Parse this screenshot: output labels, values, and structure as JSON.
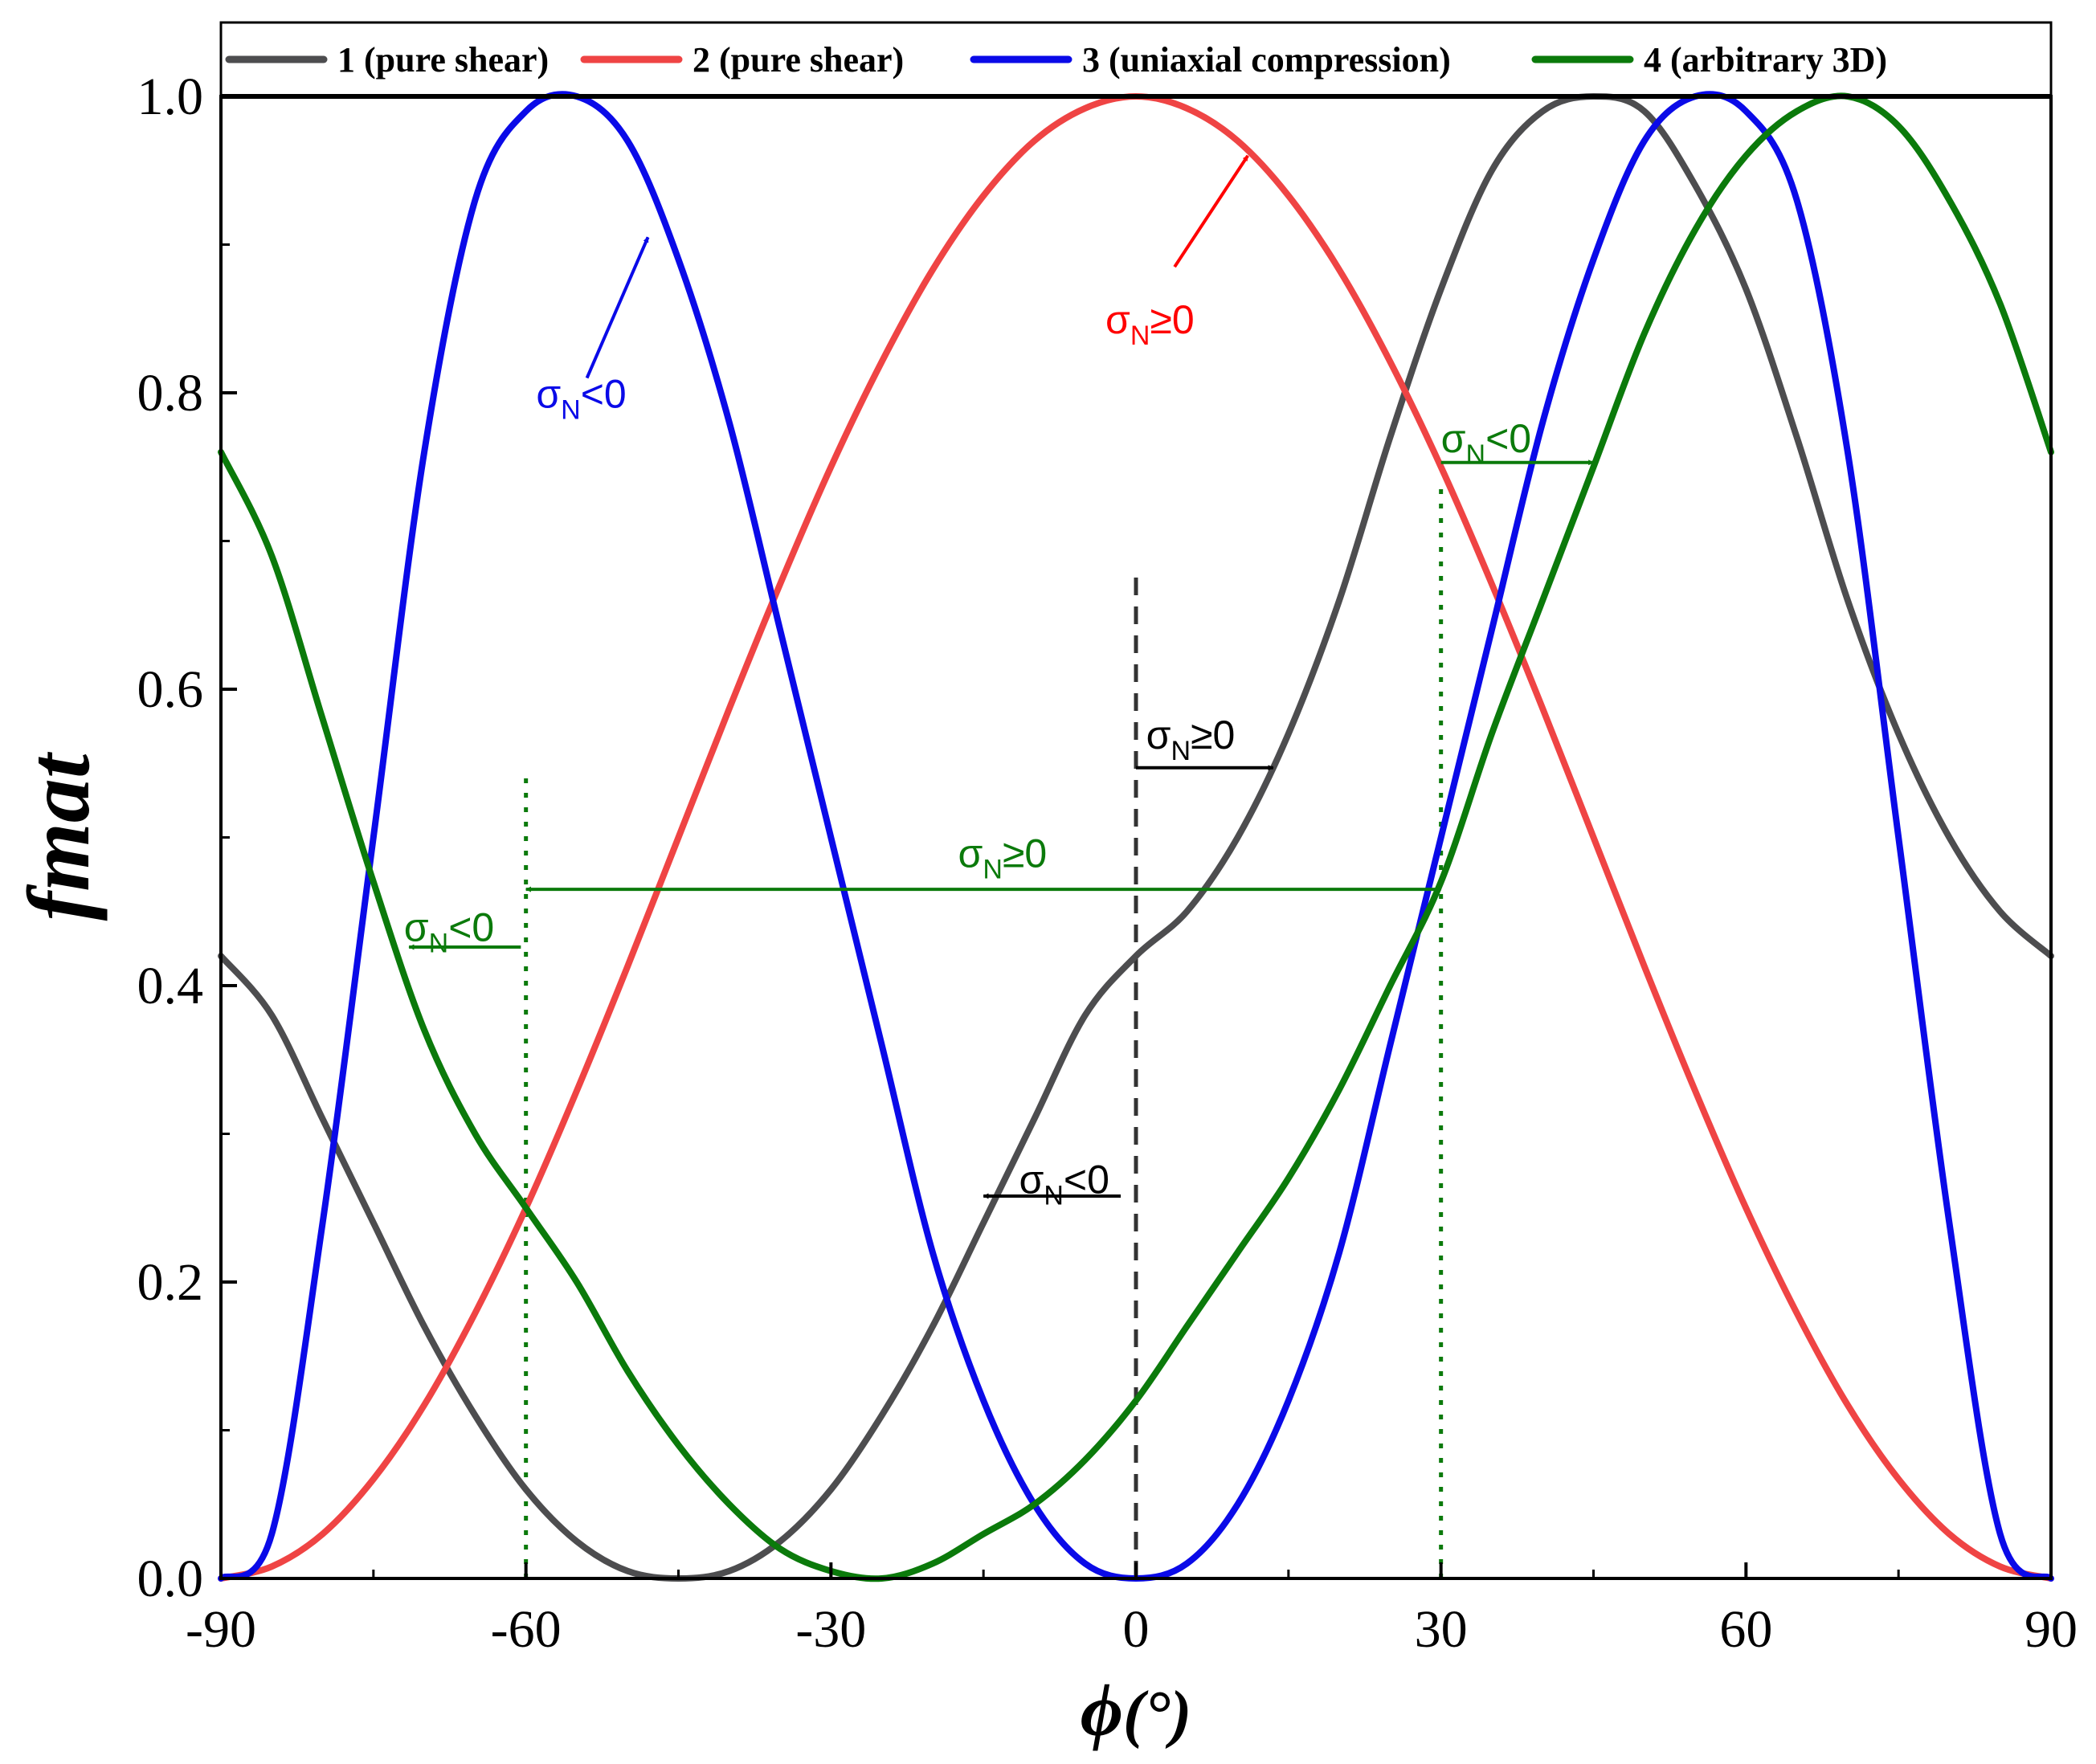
{
  "chart_data": {
    "type": "line",
    "xlabel": "ϕ",
    "xlabel_unit": "(°)",
    "ylabel": "fmat",
    "xlim": [
      -90,
      90
    ],
    "ylim": [
      0,
      1.0
    ],
    "x_ticks": [
      -90,
      -60,
      -30,
      0,
      30,
      60,
      90
    ],
    "x_tick_labels": [
      "-90",
      "-60",
      "-30",
      "0",
      "30",
      "60",
      "90"
    ],
    "y_ticks": [
      0.0,
      0.2,
      0.4,
      0.6,
      0.8,
      1.0
    ],
    "y_tick_labels": [
      "0.0",
      "0.2",
      "0.4",
      "0.6",
      "0.8",
      "1.0"
    ],
    "grid": false,
    "legend_position": "top",
    "series": [
      {
        "name": "1 (pure shear)",
        "color": "#4d4d4f",
        "x": [
          -90,
          -85,
          -80,
          -75,
          -70,
          -65,
          -60,
          -55,
          -50,
          -45,
          -40,
          -35,
          -30,
          -25,
          -20,
          -15,
          -10,
          -5,
          0,
          5,
          10,
          15,
          20,
          25,
          30,
          35,
          40,
          45,
          50,
          55,
          60,
          65,
          70,
          75,
          80,
          85,
          90
        ],
        "y": [
          0.42,
          0.38,
          0.31,
          0.24,
          0.17,
          0.11,
          0.06,
          0.025,
          0.005,
          0.0,
          0.005,
          0.025,
          0.06,
          0.11,
          0.17,
          0.24,
          0.31,
          0.38,
          0.42,
          0.45,
          0.5,
          0.57,
          0.66,
          0.77,
          0.87,
          0.95,
          0.99,
          1.0,
          0.99,
          0.94,
          0.87,
          0.77,
          0.66,
          0.57,
          0.5,
          0.45,
          0.42
        ]
      },
      {
        "name": "2 (pure shear)",
        "color": "#ef4444",
        "x": [
          -90,
          -85,
          -80,
          -75,
          -70,
          -65,
          -60,
          -55,
          -50,
          -45,
          -40,
          -35,
          -30,
          -25,
          -20,
          -15,
          -10,
          -5,
          0,
          5,
          10,
          15,
          20,
          25,
          30,
          35,
          40,
          45,
          50,
          55,
          60,
          65,
          70,
          75,
          80,
          85,
          90
        ],
        "y": [
          0.0,
          0.008,
          0.03,
          0.067,
          0.117,
          0.179,
          0.25,
          0.329,
          0.413,
          0.5,
          0.587,
          0.671,
          0.75,
          0.821,
          0.883,
          0.933,
          0.97,
          0.992,
          1.0,
          0.992,
          0.97,
          0.933,
          0.883,
          0.821,
          0.75,
          0.671,
          0.587,
          0.5,
          0.413,
          0.329,
          0.25,
          0.179,
          0.117,
          0.067,
          0.03,
          0.008,
          0.0
        ]
      },
      {
        "name": "3 (uniaxial compression)",
        "color": "#0a0ae8",
        "x": [
          -90,
          -85,
          -80,
          -75,
          -70,
          -65,
          -60,
          -55,
          -50,
          -45,
          -40,
          -35,
          -30,
          -25,
          -20,
          -15,
          -10,
          -5,
          0,
          5,
          10,
          15,
          20,
          25,
          30,
          35,
          40,
          45,
          50,
          55,
          60,
          65,
          70,
          75,
          80,
          85,
          90
        ],
        "y": [
          0.0,
          0.03,
          0.24,
          0.5,
          0.76,
          0.93,
          0.99,
          1.0,
          0.97,
          0.89,
          0.78,
          0.64,
          0.5,
          0.36,
          0.22,
          0.12,
          0.05,
          0.01,
          0.0,
          0.01,
          0.05,
          0.12,
          0.22,
          0.36,
          0.5,
          0.64,
          0.78,
          0.89,
          0.97,
          1.0,
          0.99,
          0.93,
          0.76,
          0.5,
          0.24,
          0.03,
          0.0
        ]
      },
      {
        "name": "4 (arbitrary 3D)",
        "color": "#0b7a0b",
        "x": [
          -90,
          -85,
          -80,
          -75,
          -70,
          -65,
          -60,
          -55,
          -50,
          -45,
          -40,
          -35,
          -30,
          -25,
          -20,
          -15,
          -10,
          -5,
          0,
          5,
          10,
          15,
          20,
          25,
          30,
          35,
          40,
          45,
          50,
          55,
          60,
          65,
          70,
          75,
          80,
          85,
          90
        ],
        "y": [
          0.76,
          0.69,
          0.58,
          0.47,
          0.37,
          0.3,
          0.25,
          0.2,
          0.14,
          0.09,
          0.05,
          0.02,
          0.005,
          0.0,
          0.01,
          0.03,
          0.05,
          0.08,
          0.12,
          0.17,
          0.22,
          0.27,
          0.33,
          0.4,
          0.47,
          0.57,
          0.66,
          0.75,
          0.84,
          0.91,
          0.96,
          0.99,
          1.0,
          0.98,
          0.93,
          0.86,
          0.76
        ]
      }
    ],
    "vlines": [
      {
        "x": 0,
        "y_top": 0.68,
        "color": "#333333",
        "style": "dashed"
      },
      {
        "x": -60,
        "y_top": 0.54,
        "color": "#0b7a0b",
        "style": "dotted"
      },
      {
        "x": 30,
        "y_top": 0.74,
        "color": "#0b7a0b",
        "style": "dotted"
      }
    ],
    "annotations": [
      {
        "text": "σ",
        "sub": "N",
        "tail": "<0",
        "color": "#0a0ae8",
        "x": -59,
        "y": 0.79,
        "arrow": {
          "from": [
            -54,
            0.81
          ],
          "to": [
            -48,
            0.905
          ]
        }
      },
      {
        "text": "σ",
        "sub": "N",
        "tail": "≥0",
        "color": "#ff0000",
        "x": -3,
        "y": 0.84,
        "arrow": {
          "from": [
            3.8,
            0.885
          ],
          "to": [
            11,
            0.96
          ]
        }
      },
      {
        "text": "σ",
        "sub": "N",
        "tail": "<0",
        "color": "#0b7a0b",
        "x": 30,
        "y": 0.76,
        "arrow": {
          "from": [
            30,
            0.753
          ],
          "to": [
            45,
            0.753
          ]
        }
      },
      {
        "text": "σ",
        "sub": "N",
        "tail": "≥0",
        "color": "#000000",
        "x": 1,
        "y": 0.56,
        "arrow": {
          "from": [
            0,
            0.547
          ],
          "to": [
            13.5,
            0.547
          ]
        }
      },
      {
        "text": "σ",
        "sub": "N",
        "tail": "≥0",
        "color": "#0b7a0b",
        "x": -17.5,
        "y": 0.48,
        "arrow": {
          "from": [
            -60,
            0.465
          ],
          "to": [
            30,
            0.465
          ],
          "double": true
        }
      },
      {
        "text": "σ",
        "sub": "N",
        "tail": "<0",
        "color": "#0b7a0b",
        "x": -72,
        "y": 0.43,
        "arrow": {
          "from": [
            -60.5,
            0.426
          ],
          "to": [
            -71.5,
            0.426
          ]
        }
      },
      {
        "text": "σ",
        "sub": "N",
        "tail": "<0",
        "color": "#000000",
        "x": -11.5,
        "y": 0.26,
        "arrow": {
          "from": [
            -1.5,
            0.258
          ],
          "to": [
            -15,
            0.258
          ]
        }
      }
    ]
  }
}
